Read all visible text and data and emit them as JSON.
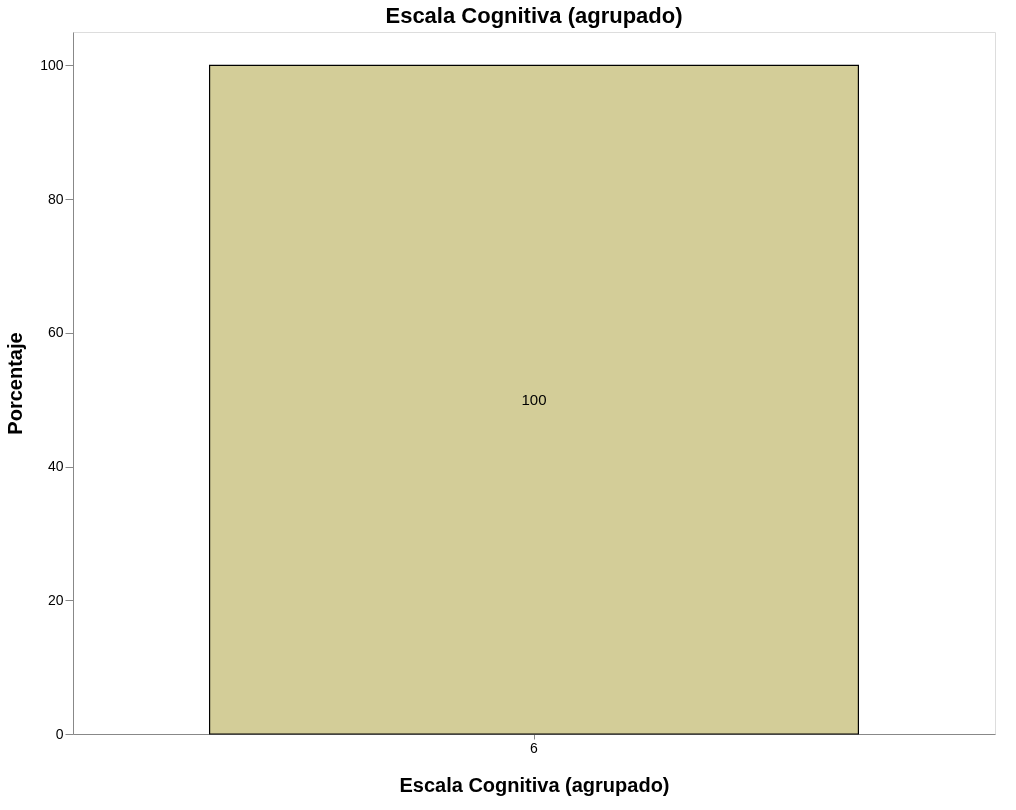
{
  "chart_data": {
    "type": "bar",
    "title": "Escala Cognitiva (agrupado)",
    "xlabel": "Escala Cognitiva (agrupado)",
    "ylabel": "Porcentaje",
    "categories": [
      "6"
    ],
    "values": [
      100
    ],
    "color": "#d3cd98",
    "ylim": [
      0,
      105
    ],
    "yticks": [
      0,
      20,
      40,
      60,
      80,
      100
    ],
    "grid": false,
    "data_labels": true
  }
}
